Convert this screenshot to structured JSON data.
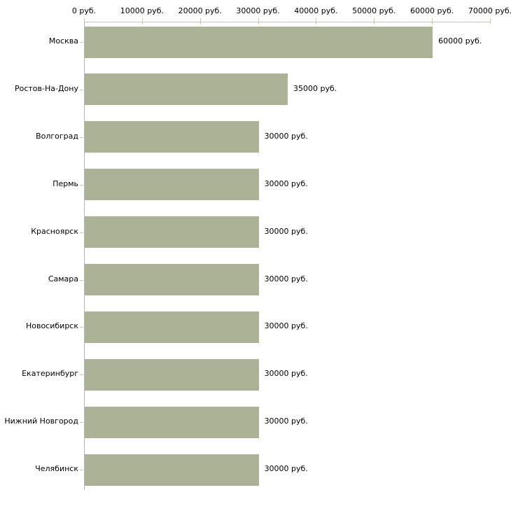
{
  "chart_data": {
    "type": "bar",
    "orientation": "horizontal",
    "title": "",
    "xlabel": "",
    "ylabel": "",
    "unit": "руб.",
    "xlim": [
      0,
      70000
    ],
    "grid": false,
    "legend": null,
    "categories": [
      "Москва",
      "Ростов-На-Дону",
      "Волгоград",
      "Пермь",
      "Красноярск",
      "Самара",
      "Новосибирск",
      "Екатеринбург",
      "Нижний Новгород",
      "Челябинск"
    ],
    "values": [
      60000,
      35000,
      30000,
      30000,
      30000,
      30000,
      30000,
      30000,
      30000,
      30000
    ],
    "value_labels": [
      "60000 руб.",
      "35000 руб.",
      "30000 руб.",
      "30000 руб.",
      "30000 руб.",
      "30000 руб.",
      "30000 руб.",
      "30000 руб.",
      "30000 руб.",
      "30000 руб."
    ],
    "x_ticks": [
      0,
      10000,
      20000,
      30000,
      40000,
      50000,
      60000,
      70000
    ],
    "x_tick_labels": [
      "0 руб.",
      "10000 руб.",
      "20000 руб.",
      "30000 руб.",
      "40000 руб.",
      "50000 руб.",
      "60000 руб.",
      "70000 руб."
    ],
    "colors": {
      "bar": "#acb295",
      "x_axis_line": "#c2c2c2",
      "y_axis_line": "#b5b5b5",
      "x_tick": "#c9c9a3",
      "category_tick": "#c6c9b4",
      "text": "#000000",
      "background": "#ffffff"
    }
  }
}
